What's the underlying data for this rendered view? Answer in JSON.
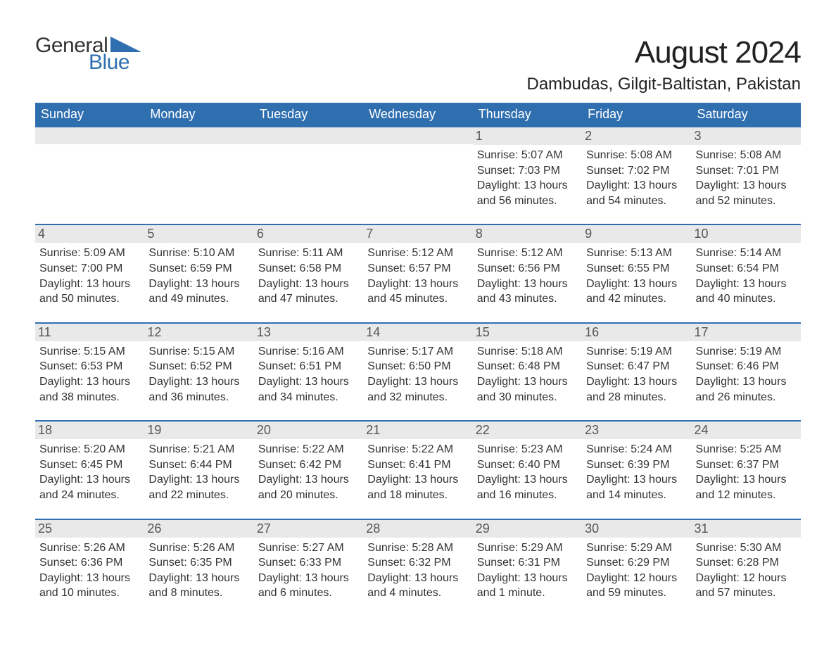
{
  "logo": {
    "word1": "General",
    "word2": "Blue",
    "tri_color": "#2f6fb0"
  },
  "title": {
    "month": "August 2024",
    "location": "Dambudas, Gilgit-Baltistan, Pakistan"
  },
  "colors": {
    "header_bg": "#2f6fb0",
    "header_fg": "#ffffff",
    "daynum_bg": "#e9e9e9",
    "daynum_fg": "#555555",
    "row_border": "#2f6fb0",
    "body_text": "#333333",
    "page_bg": "#ffffff"
  },
  "typography": {
    "title_fontsize_pt": 33,
    "location_fontsize_pt": 18,
    "header_fontsize_pt": 14,
    "daynum_fontsize_pt": 14,
    "body_fontsize_pt": 12,
    "font_family": "Arial"
  },
  "layout": {
    "columns": 7,
    "rows": 5,
    "aspect_ratio": "1188:918"
  },
  "calendar": {
    "type": "table",
    "headers": [
      "Sunday",
      "Monday",
      "Tuesday",
      "Wednesday",
      "Thursday",
      "Friday",
      "Saturday"
    ],
    "weeks": [
      [
        null,
        null,
        null,
        null,
        {
          "day": "1",
          "sunrise": "Sunrise: 5:07 AM",
          "sunset": "Sunset: 7:03 PM",
          "daylight1": "Daylight: 13 hours",
          "daylight2": "and 56 minutes."
        },
        {
          "day": "2",
          "sunrise": "Sunrise: 5:08 AM",
          "sunset": "Sunset: 7:02 PM",
          "daylight1": "Daylight: 13 hours",
          "daylight2": "and 54 minutes."
        },
        {
          "day": "3",
          "sunrise": "Sunrise: 5:08 AM",
          "sunset": "Sunset: 7:01 PM",
          "daylight1": "Daylight: 13 hours",
          "daylight2": "and 52 minutes."
        }
      ],
      [
        {
          "day": "4",
          "sunrise": "Sunrise: 5:09 AM",
          "sunset": "Sunset: 7:00 PM",
          "daylight1": "Daylight: 13 hours",
          "daylight2": "and 50 minutes."
        },
        {
          "day": "5",
          "sunrise": "Sunrise: 5:10 AM",
          "sunset": "Sunset: 6:59 PM",
          "daylight1": "Daylight: 13 hours",
          "daylight2": "and 49 minutes."
        },
        {
          "day": "6",
          "sunrise": "Sunrise: 5:11 AM",
          "sunset": "Sunset: 6:58 PM",
          "daylight1": "Daylight: 13 hours",
          "daylight2": "and 47 minutes."
        },
        {
          "day": "7",
          "sunrise": "Sunrise: 5:12 AM",
          "sunset": "Sunset: 6:57 PM",
          "daylight1": "Daylight: 13 hours",
          "daylight2": "and 45 minutes."
        },
        {
          "day": "8",
          "sunrise": "Sunrise: 5:12 AM",
          "sunset": "Sunset: 6:56 PM",
          "daylight1": "Daylight: 13 hours",
          "daylight2": "and 43 minutes."
        },
        {
          "day": "9",
          "sunrise": "Sunrise: 5:13 AM",
          "sunset": "Sunset: 6:55 PM",
          "daylight1": "Daylight: 13 hours",
          "daylight2": "and 42 minutes."
        },
        {
          "day": "10",
          "sunrise": "Sunrise: 5:14 AM",
          "sunset": "Sunset: 6:54 PM",
          "daylight1": "Daylight: 13 hours",
          "daylight2": "and 40 minutes."
        }
      ],
      [
        {
          "day": "11",
          "sunrise": "Sunrise: 5:15 AM",
          "sunset": "Sunset: 6:53 PM",
          "daylight1": "Daylight: 13 hours",
          "daylight2": "and 38 minutes."
        },
        {
          "day": "12",
          "sunrise": "Sunrise: 5:15 AM",
          "sunset": "Sunset: 6:52 PM",
          "daylight1": "Daylight: 13 hours",
          "daylight2": "and 36 minutes."
        },
        {
          "day": "13",
          "sunrise": "Sunrise: 5:16 AM",
          "sunset": "Sunset: 6:51 PM",
          "daylight1": "Daylight: 13 hours",
          "daylight2": "and 34 minutes."
        },
        {
          "day": "14",
          "sunrise": "Sunrise: 5:17 AM",
          "sunset": "Sunset: 6:50 PM",
          "daylight1": "Daylight: 13 hours",
          "daylight2": "and 32 minutes."
        },
        {
          "day": "15",
          "sunrise": "Sunrise: 5:18 AM",
          "sunset": "Sunset: 6:48 PM",
          "daylight1": "Daylight: 13 hours",
          "daylight2": "and 30 minutes."
        },
        {
          "day": "16",
          "sunrise": "Sunrise: 5:19 AM",
          "sunset": "Sunset: 6:47 PM",
          "daylight1": "Daylight: 13 hours",
          "daylight2": "and 28 minutes."
        },
        {
          "day": "17",
          "sunrise": "Sunrise: 5:19 AM",
          "sunset": "Sunset: 6:46 PM",
          "daylight1": "Daylight: 13 hours",
          "daylight2": "and 26 minutes."
        }
      ],
      [
        {
          "day": "18",
          "sunrise": "Sunrise: 5:20 AM",
          "sunset": "Sunset: 6:45 PM",
          "daylight1": "Daylight: 13 hours",
          "daylight2": "and 24 minutes."
        },
        {
          "day": "19",
          "sunrise": "Sunrise: 5:21 AM",
          "sunset": "Sunset: 6:44 PM",
          "daylight1": "Daylight: 13 hours",
          "daylight2": "and 22 minutes."
        },
        {
          "day": "20",
          "sunrise": "Sunrise: 5:22 AM",
          "sunset": "Sunset: 6:42 PM",
          "daylight1": "Daylight: 13 hours",
          "daylight2": "and 20 minutes."
        },
        {
          "day": "21",
          "sunrise": "Sunrise: 5:22 AM",
          "sunset": "Sunset: 6:41 PM",
          "daylight1": "Daylight: 13 hours",
          "daylight2": "and 18 minutes."
        },
        {
          "day": "22",
          "sunrise": "Sunrise: 5:23 AM",
          "sunset": "Sunset: 6:40 PM",
          "daylight1": "Daylight: 13 hours",
          "daylight2": "and 16 minutes."
        },
        {
          "day": "23",
          "sunrise": "Sunrise: 5:24 AM",
          "sunset": "Sunset: 6:39 PM",
          "daylight1": "Daylight: 13 hours",
          "daylight2": "and 14 minutes."
        },
        {
          "day": "24",
          "sunrise": "Sunrise: 5:25 AM",
          "sunset": "Sunset: 6:37 PM",
          "daylight1": "Daylight: 13 hours",
          "daylight2": "and 12 minutes."
        }
      ],
      [
        {
          "day": "25",
          "sunrise": "Sunrise: 5:26 AM",
          "sunset": "Sunset: 6:36 PM",
          "daylight1": "Daylight: 13 hours",
          "daylight2": "and 10 minutes."
        },
        {
          "day": "26",
          "sunrise": "Sunrise: 5:26 AM",
          "sunset": "Sunset: 6:35 PM",
          "daylight1": "Daylight: 13 hours",
          "daylight2": "and 8 minutes."
        },
        {
          "day": "27",
          "sunrise": "Sunrise: 5:27 AM",
          "sunset": "Sunset: 6:33 PM",
          "daylight1": "Daylight: 13 hours",
          "daylight2": "and 6 minutes."
        },
        {
          "day": "28",
          "sunrise": "Sunrise: 5:28 AM",
          "sunset": "Sunset: 6:32 PM",
          "daylight1": "Daylight: 13 hours",
          "daylight2": "and 4 minutes."
        },
        {
          "day": "29",
          "sunrise": "Sunrise: 5:29 AM",
          "sunset": "Sunset: 6:31 PM",
          "daylight1": "Daylight: 13 hours",
          "daylight2": "and 1 minute."
        },
        {
          "day": "30",
          "sunrise": "Sunrise: 5:29 AM",
          "sunset": "Sunset: 6:29 PM",
          "daylight1": "Daylight: 12 hours",
          "daylight2": "and 59 minutes."
        },
        {
          "day": "31",
          "sunrise": "Sunrise: 5:30 AM",
          "sunset": "Sunset: 6:28 PM",
          "daylight1": "Daylight: 12 hours",
          "daylight2": "and 57 minutes."
        }
      ]
    ]
  }
}
